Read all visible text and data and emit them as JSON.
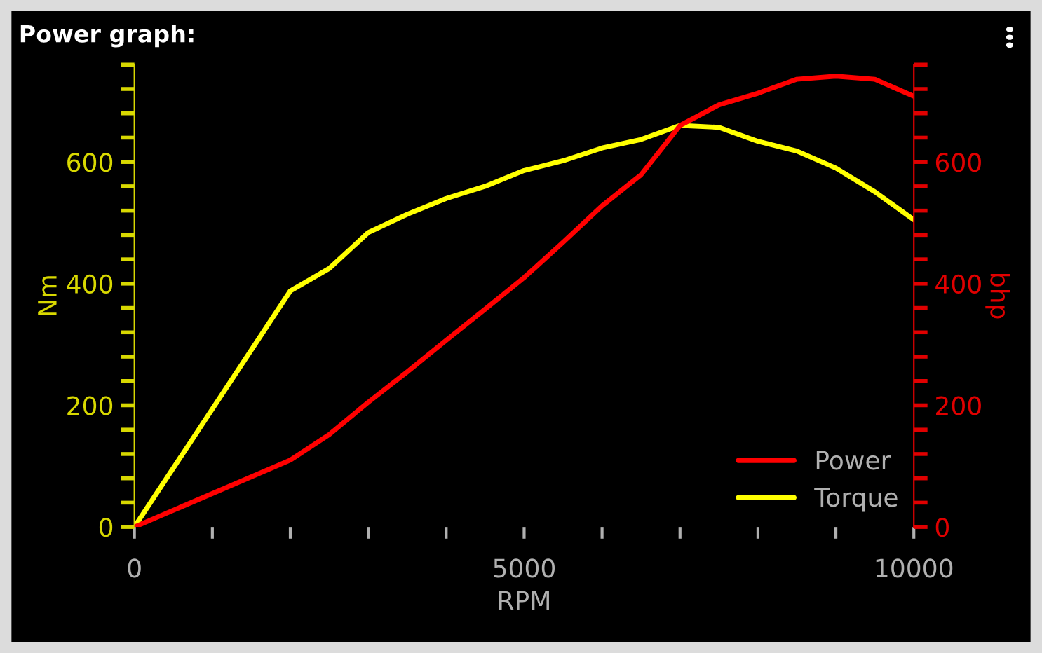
{
  "chart_data": {
    "type": "line",
    "title": "Power graph:",
    "xlabel": "RPM",
    "ylabel": "Nm",
    "y2label": "bhp",
    "xlim": [
      0,
      10000
    ],
    "xticks": [
      0,
      {
        "value": 1000,
        "label": null
      },
      {
        "value": 2000,
        "label": null
      },
      {
        "value": 3000,
        "label": null
      },
      {
        "value": 4000,
        "label": null
      },
      5000,
      {
        "value": 6000,
        "label": null
      },
      {
        "value": 7000,
        "label": null
      },
      {
        "value": 8000,
        "label": null
      },
      {
        "value": 9000,
        "label": null
      },
      10000
    ],
    "ylim": [
      0,
      760
    ],
    "yticks": [
      0,
      {
        "value": 40,
        "label": null
      },
      {
        "value": 80,
        "label": null
      },
      {
        "value": 120,
        "label": null
      },
      {
        "value": 160,
        "label": null
      },
      200,
      {
        "value": 240,
        "label": null
      },
      {
        "value": 280,
        "label": null
      },
      {
        "value": 320,
        "label": null
      },
      {
        "value": 360,
        "label": null
      },
      400,
      {
        "value": 440,
        "label": null
      },
      {
        "value": 480,
        "label": null
      },
      {
        "value": 520,
        "label": null
      },
      {
        "value": 560,
        "label": null
      },
      600,
      {
        "value": 640,
        "label": null
      },
      {
        "value": 680,
        "label": null
      },
      {
        "value": 720,
        "label": null
      },
      {
        "value": 760,
        "label": null
      }
    ],
    "y2lim": [
      0,
      760
    ],
    "y2ticks": [
      0,
      {
        "value": 40,
        "label": null
      },
      {
        "value": 80,
        "label": null
      },
      {
        "value": 120,
        "label": null
      },
      {
        "value": 160,
        "label": null
      },
      200,
      {
        "value": 240,
        "label": null
      },
      {
        "value": 280,
        "label": null
      },
      {
        "value": 320,
        "label": null
      },
      {
        "value": 360,
        "label": null
      },
      400,
      {
        "value": 440,
        "label": null
      },
      {
        "value": 480,
        "label": null
      },
      {
        "value": 520,
        "label": null
      },
      {
        "value": 560,
        "label": null
      },
      600,
      {
        "value": 640,
        "label": null
      },
      {
        "value": 680,
        "label": null
      },
      {
        "value": 720,
        "label": null
      },
      {
        "value": 760,
        "label": null
      }
    ],
    "x": [
      0,
      2000,
      2500,
      3000,
      3500,
      4000,
      4500,
      5000,
      5500,
      6000,
      6500,
      7000,
      7500,
      8000,
      8500,
      9000,
      9500,
      10000
    ],
    "series": [
      {
        "name": "Power",
        "color": "#ff0000",
        "axis": "y2",
        "values": [
          0,
          110,
          152,
          205,
          255,
          307,
          358,
          410,
          468,
          528,
          579,
          660,
          694,
          713,
          736,
          741,
          736,
          708
        ]
      },
      {
        "name": "Torque",
        "color": "#ffff00",
        "values": [
          0,
          388,
          425,
          484,
          514,
          540,
          560,
          586,
          602,
          623,
          637,
          660,
          657,
          634,
          618,
          590,
          551,
          505
        ]
      }
    ],
    "legend": "bottom right",
    "grid": false,
    "marker": "none",
    "line_style": "solid"
  }
}
